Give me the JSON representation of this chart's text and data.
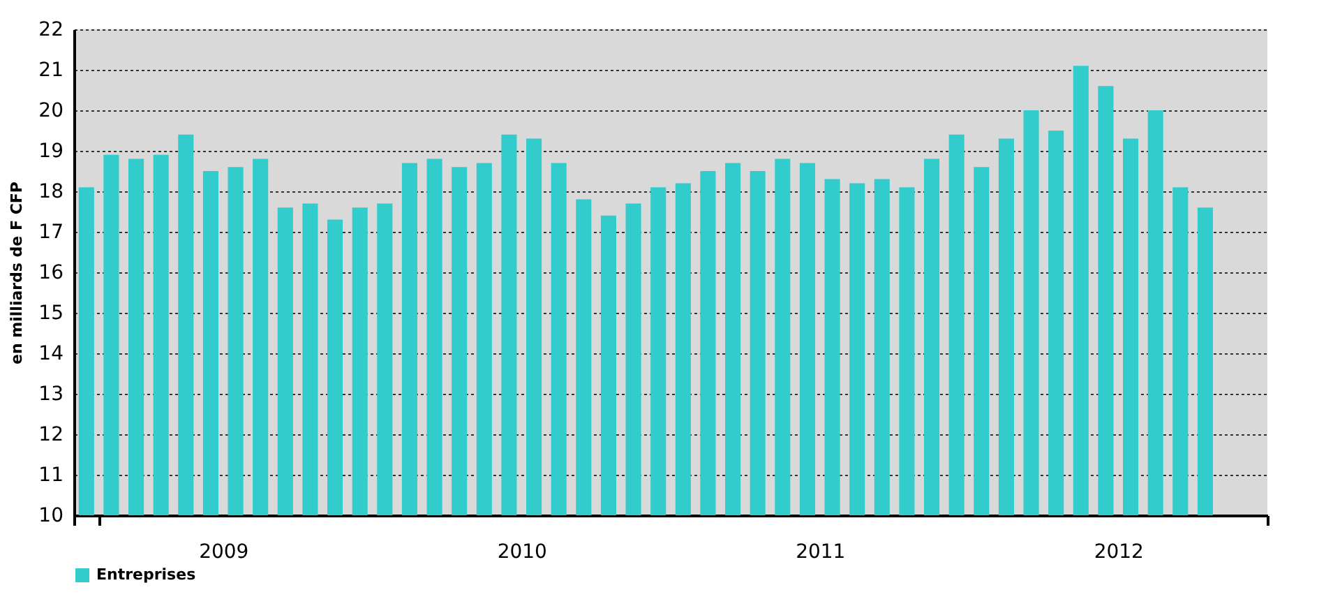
{
  "chart_data": {
    "type": "bar",
    "ylabel": "en  milliards de F CFP",
    "categories": [
      null,
      null,
      null,
      null,
      null,
      null,
      "2009",
      null,
      null,
      null,
      null,
      null,
      null,
      null,
      null,
      null,
      null,
      null,
      "2010",
      null,
      null,
      null,
      null,
      null,
      null,
      null,
      null,
      null,
      null,
      null,
      "2011",
      null,
      null,
      null,
      null,
      null,
      null,
      null,
      null,
      null,
      null,
      null,
      "2012",
      null,
      null,
      null,
      null,
      null
    ],
    "series": [
      {
        "name": "Entreprises",
        "color": "#33cccc",
        "values": [
          18.1,
          18.9,
          18.8,
          18.9,
          19.4,
          18.5,
          18.6,
          18.8,
          17.6,
          17.7,
          17.3,
          17.6,
          17.7,
          18.7,
          18.8,
          18.6,
          18.7,
          19.4,
          19.3,
          18.7,
          17.8,
          17.4,
          17.7,
          18.1,
          18.2,
          18.5,
          18.7,
          18.5,
          18.8,
          18.7,
          18.3,
          18.2,
          18.3,
          18.1,
          18.8,
          19.4,
          18.6,
          19.3,
          20.0,
          19.5,
          21.1,
          20.6,
          19.3,
          20.0,
          18.1,
          17.6,
          null,
          null
        ]
      }
    ],
    "ylim": [
      10,
      22
    ],
    "yticks": [
      10,
      11,
      12,
      13,
      14,
      15,
      16,
      17,
      18,
      19,
      20,
      21,
      22
    ],
    "grid": "y",
    "legend": "bottom"
  }
}
